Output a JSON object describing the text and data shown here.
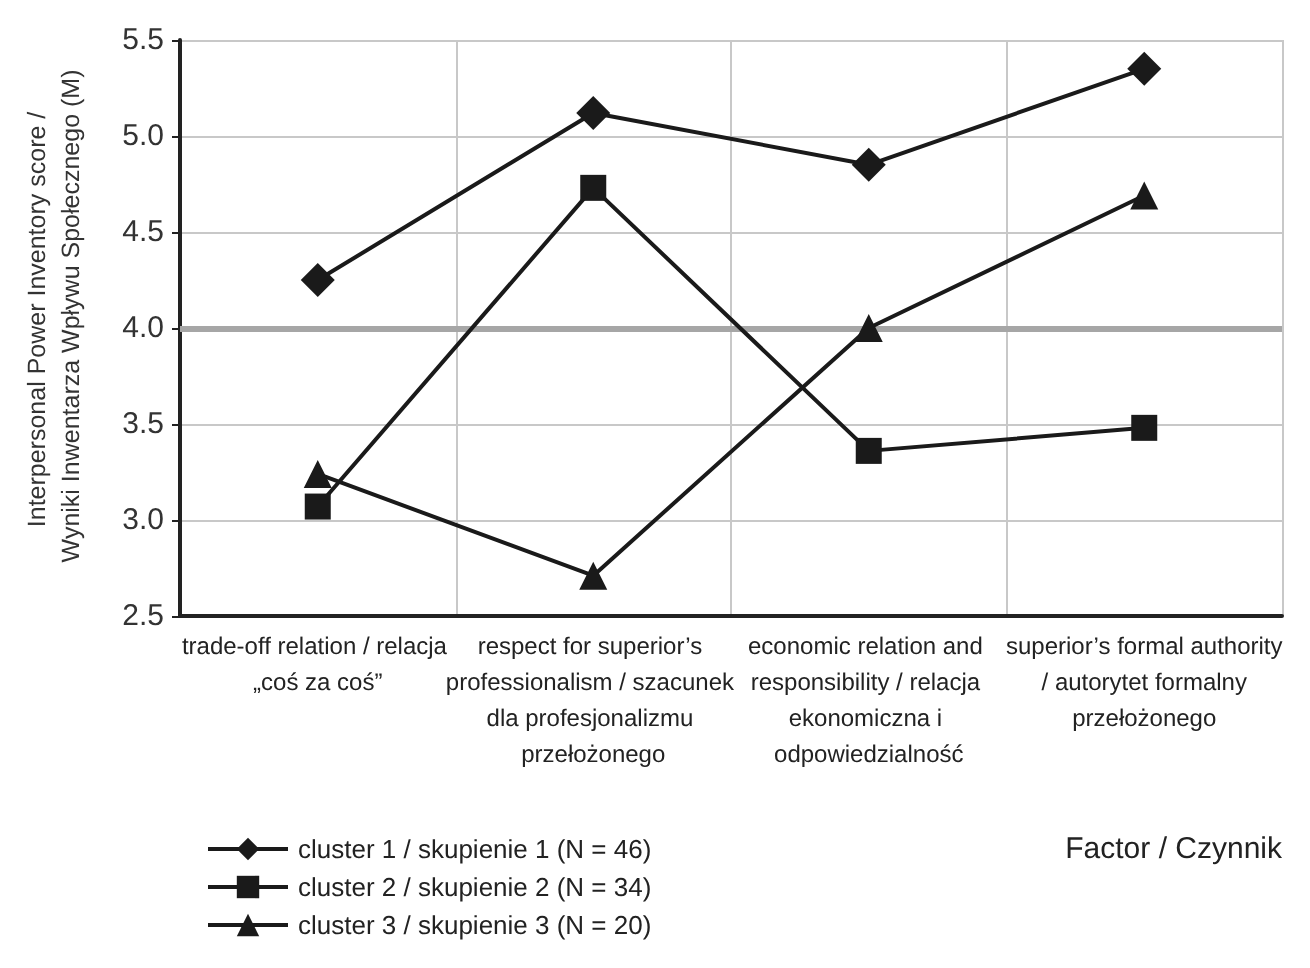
{
  "chart_data": {
    "type": "line",
    "ylabel": "Interpersonal Power Inventory score / Wyniki Inwentarza Wpływu Społecznego (M)",
    "xlabel": "Factor / Czynnik",
    "categories": [
      "trade-off relation / relacja „coś za coś”",
      "respect for superior’s professionalism / szacunek dla profesjonalizmu przełożonego",
      "economic relation and responsibility / relacja ekonomiczna i odpowiedzialność",
      "superior’s formal authority / autorytet formalny przełożonego"
    ],
    "series": [
      {
        "name": "cluster 1 / skupienie 1 (N = 46)",
        "color": "#1a1a1a",
        "marker": "diamond",
        "values": [
          4.25,
          5.12,
          4.85,
          5.35
        ]
      },
      {
        "name": "cluster 2 / skupienie 2 (N = 34)",
        "color": "#1a1a1a",
        "marker": "square",
        "values": [
          3.07,
          4.73,
          3.36,
          3.48
        ]
      },
      {
        "name": "cluster 3 / skupienie 3 (N = 20)",
        "color": "#1a1a1a",
        "marker": "triangle",
        "values": [
          3.24,
          2.71,
          4.0,
          4.69
        ]
      }
    ],
    "ylim": [
      2.5,
      5.5
    ],
    "yticks": [
      2.5,
      {
        "value": 3,
        "label": "3.0"
      },
      3.5,
      {
        "value": 4,
        "label": "4.0"
      },
      4.5,
      {
        "value": 5,
        "label": "5.0"
      },
      5.5
    ],
    "ref_lines": [
      {
        "axis": "y",
        "value": 4.0,
        "color": "#a6a6a6"
      }
    ],
    "grid": true,
    "legend": "bottom left",
    "line_style": "solid"
  }
}
